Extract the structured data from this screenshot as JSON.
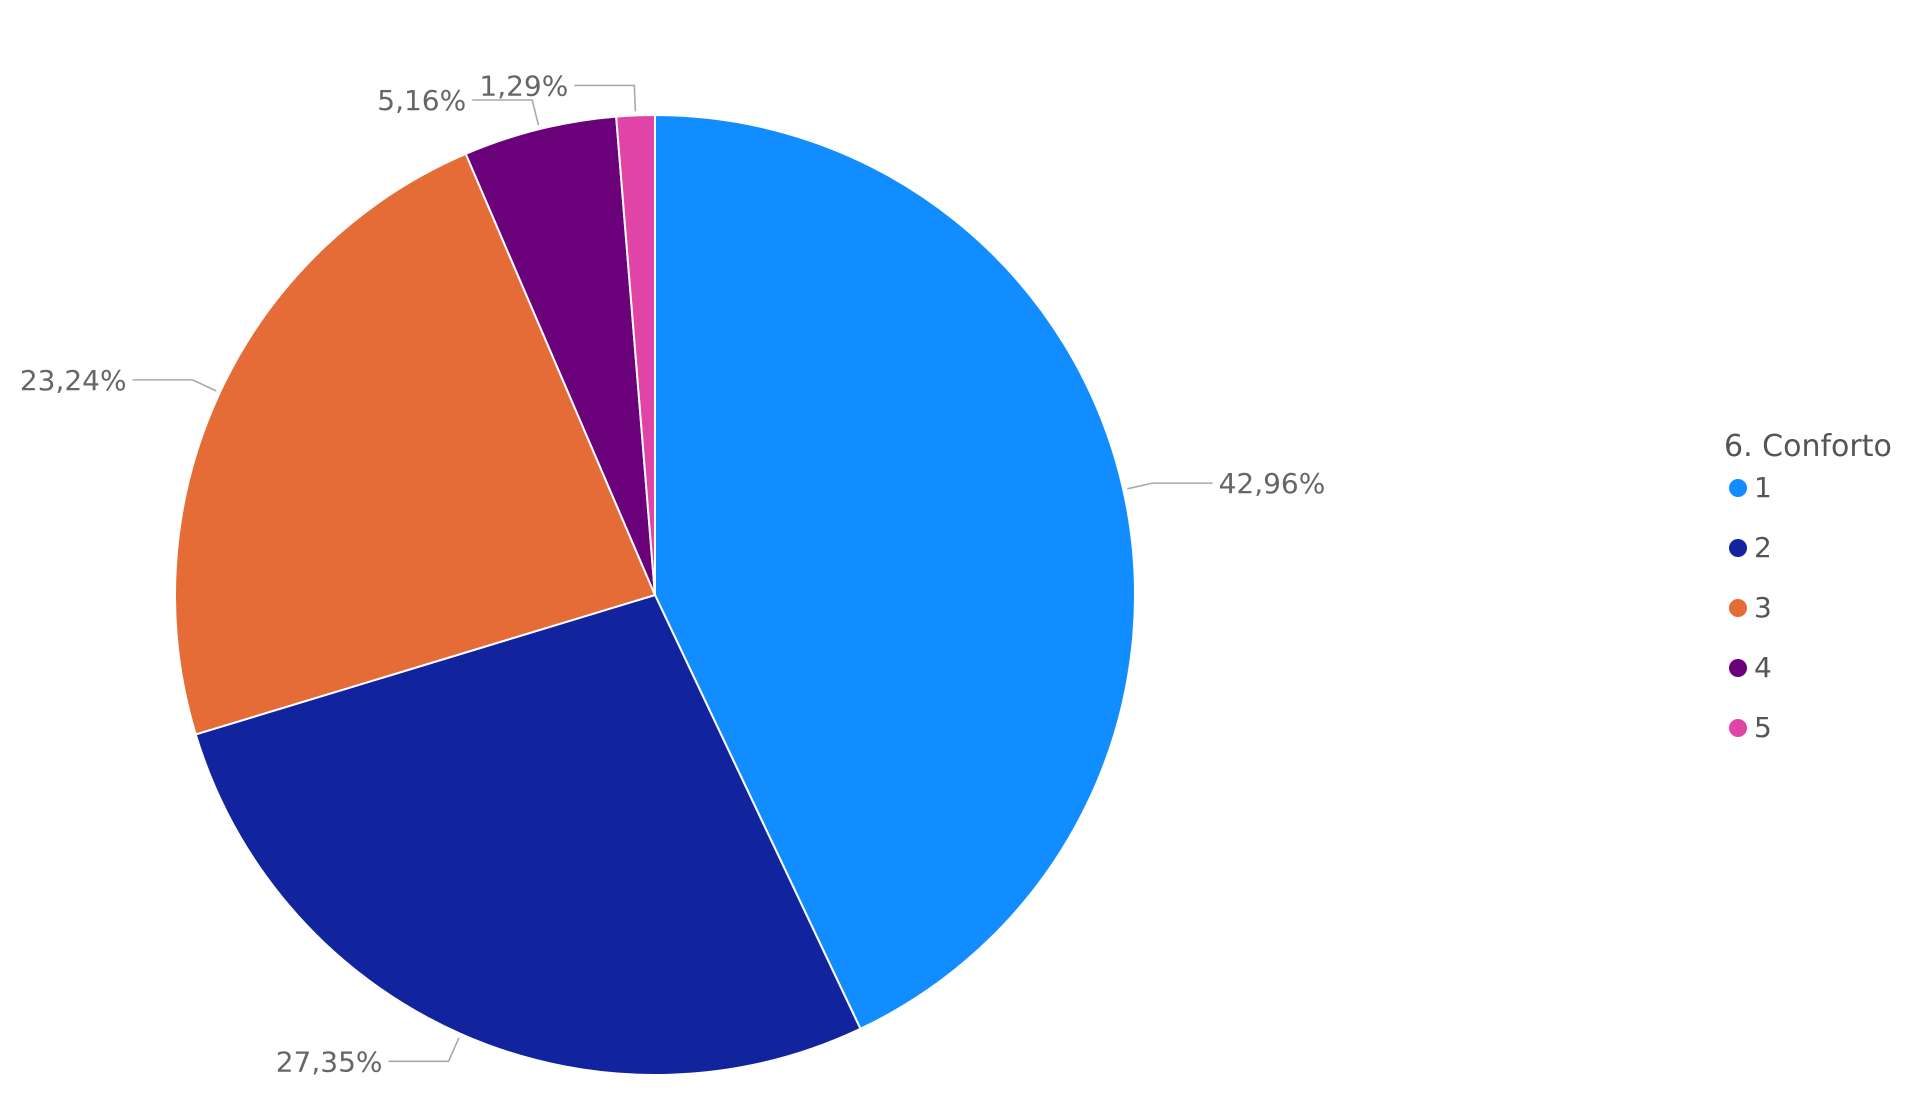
{
  "chart_data": {
    "type": "pie",
    "legend_title": "6. Conforto",
    "legend_position": "right",
    "slices": [
      {
        "name": "1",
        "value": 42.96,
        "label": "42,96%",
        "color": "#118DFF"
      },
      {
        "name": "2",
        "value": 27.35,
        "label": "27,35%",
        "color": "#12239E"
      },
      {
        "name": "3",
        "value": 23.24,
        "label": "23,24%",
        "color": "#E66C37"
      },
      {
        "name": "4",
        "value": 5.16,
        "label": "5,16%",
        "color": "#6B007B"
      },
      {
        "name": "5",
        "value": 1.29,
        "label": "1,29%",
        "color": "#E044A7"
      }
    ]
  }
}
